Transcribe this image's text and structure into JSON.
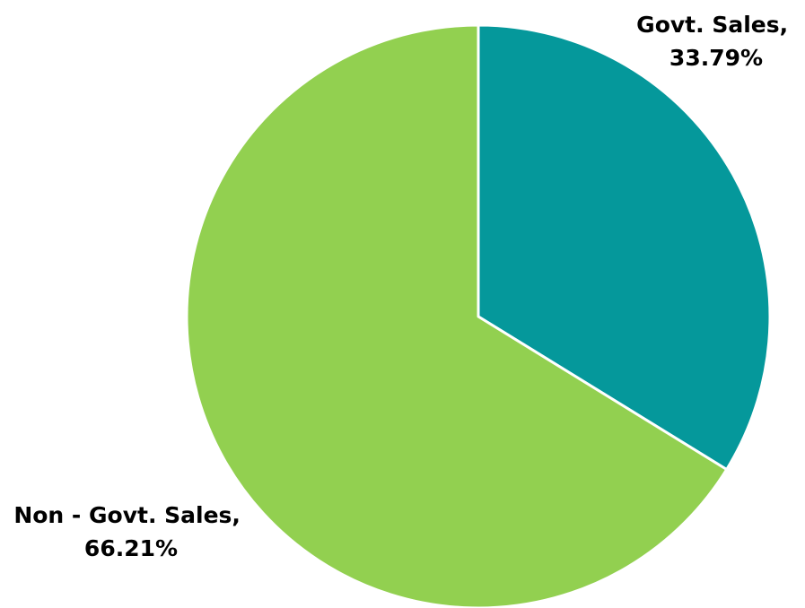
{
  "chart_data": {
    "type": "pie",
    "title": "",
    "slices": [
      {
        "name": "Govt. Sales",
        "value": 33.79,
        "label_line1": "Govt. Sales,",
        "label_line2": "33.79%",
        "color": "#05989B"
      },
      {
        "name": "Non - Govt. Sales",
        "value": 66.21,
        "label_line1": "Non - Govt. Sales,",
        "label_line2": "66.21%",
        "color": "#92D050"
      }
    ],
    "start": "12 o'clock",
    "direction": "clockwise",
    "legend": "none",
    "slice_border_color": "#FFFFFF"
  }
}
